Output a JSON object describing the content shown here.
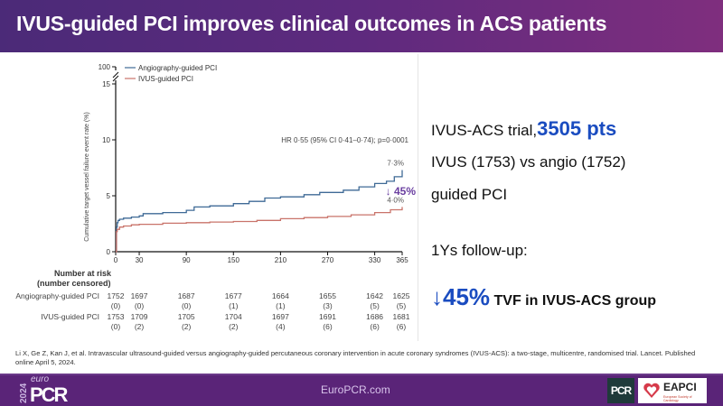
{
  "header": {
    "title": "IVUS-guided PCI improves clinical outcomes in ACS patients"
  },
  "chart_data": {
    "type": "line",
    "title": "",
    "xlabel": "",
    "ylabel": "Cumulative target vessel failure event rate (%)",
    "xlim": [
      0,
      365
    ],
    "ylim": [
      0,
      15
    ],
    "y_break_label": "100",
    "x_ticks": [
      0,
      30,
      90,
      150,
      210,
      270,
      330,
      365
    ],
    "y_ticks": [
      0,
      5,
      10,
      15
    ],
    "legend": {
      "position": "top-left",
      "entries": [
        "Angiography-guided PCI",
        "IVUS-guided PCI"
      ]
    },
    "annotation": "HR 0·55 (95% CI 0·41–0·74); p=0·0001",
    "reduction_label": "↓ 45%",
    "series": [
      {
        "name": "Angiography-guided PCI",
        "color": "#3f6a96",
        "end_label": "7·3%",
        "x": [
          0,
          1,
          2,
          3,
          5,
          10,
          20,
          30,
          35,
          60,
          90,
          100,
          120,
          150,
          170,
          190,
          210,
          240,
          260,
          290,
          310,
          330,
          345,
          355,
          365
        ],
        "y": [
          0,
          2.2,
          2.6,
          2.8,
          2.9,
          3.0,
          3.1,
          3.2,
          3.4,
          3.5,
          3.7,
          4.0,
          4.1,
          4.3,
          4.5,
          4.8,
          4.9,
          5.1,
          5.3,
          5.5,
          5.8,
          6.1,
          6.3,
          6.7,
          7.3
        ]
      },
      {
        "name": "IVUS-guided PCI",
        "color": "#c9736a",
        "end_label": "4·0%",
        "x": [
          0,
          1,
          2,
          5,
          10,
          20,
          30,
          60,
          90,
          120,
          150,
          180,
          210,
          240,
          270,
          300,
          330,
          350,
          365
        ],
        "y": [
          0,
          1.8,
          2.0,
          2.2,
          2.3,
          2.4,
          2.45,
          2.55,
          2.6,
          2.65,
          2.7,
          2.8,
          2.95,
          3.05,
          3.15,
          3.3,
          3.5,
          3.75,
          4.0
        ]
      }
    ]
  },
  "risk_table": {
    "title_line1": "Number at risk",
    "title_line2": "(number censored)",
    "rows": [
      {
        "label": "Angiography-guided PCI",
        "values": [
          "1752",
          "1697",
          "1687",
          "1677",
          "1664",
          "1655",
          "1642",
          "1625"
        ],
        "censored": [
          "(0)",
          "(0)",
          "(0)",
          "(1)",
          "(1)",
          "(3)",
          "(5)",
          "(5)"
        ]
      },
      {
        "label": "IVUS-guided PCI",
        "values": [
          "1753",
          "1709",
          "1705",
          "1704",
          "1697",
          "1691",
          "1686",
          "1681"
        ],
        "censored": [
          "(0)",
          "(2)",
          "(2)",
          "(2)",
          "(4)",
          "(6)",
          "(6)",
          "(6)"
        ]
      }
    ]
  },
  "info": {
    "trial_prefix": "IVUS-ACS trial,",
    "trial_pts": "3505 pts",
    "line2": "IVUS (1753) vs angio (1752)",
    "line3": "guided PCI",
    "followup": "1Ys follow-up:",
    "reduction_arrow": "↓",
    "reduction_pct": "45%",
    "reduction_text": "TVF in IVUS-ACS group"
  },
  "citation": "Li X, Ge Z, Kan J, et al. Intravascular ultrasound-guided versus angiography-guided percutaneous coronary intervention in acute coronary syndromes (IVUS-ACS): a two-stage, multicentre, randomised trial. Lancet. Published online April 5, 2024.",
  "footer": {
    "logo_year": "2024",
    "logo_euro": "euro",
    "logo_pcr": "PCR",
    "site": "EuroPCR.com",
    "badge_pcr": "PCR",
    "badge_eapci": "EAPCI",
    "badge_eapci_sub": "European Society of Cardiology"
  }
}
